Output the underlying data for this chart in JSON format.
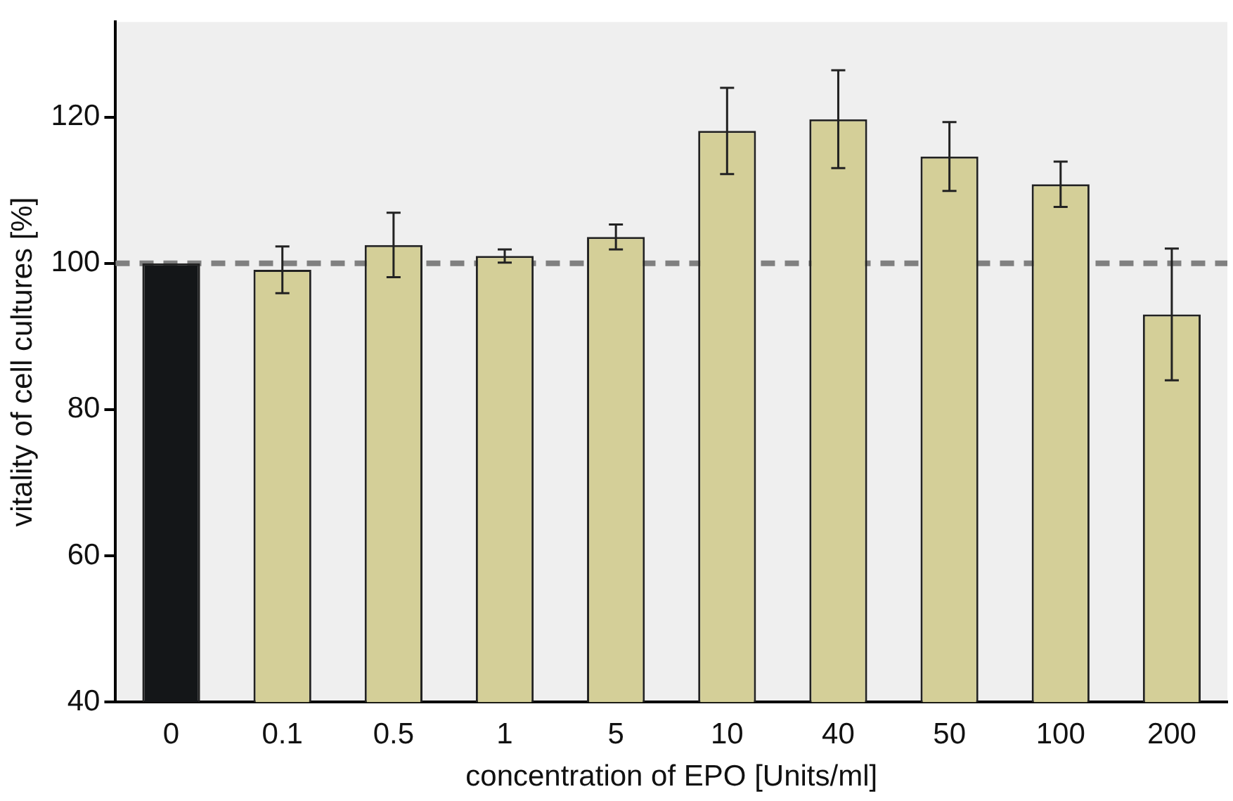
{
  "chart_data": {
    "type": "bar",
    "categories": [
      "0",
      "0.1",
      "0.5",
      "1",
      "5",
      "10",
      "40",
      "50",
      "100",
      "200"
    ],
    "values": [
      100,
      99.1,
      102.5,
      101.0,
      103.6,
      118.1,
      119.7,
      114.6,
      110.8,
      93.0
    ],
    "errors": [
      null,
      3.2,
      4.4,
      0.9,
      1.7,
      5.9,
      6.7,
      4.7,
      3.1,
      9.0
    ],
    "colors": [
      "#141618",
      "#d4cf98",
      "#d4cf98",
      "#d4cf98",
      "#d4cf98",
      "#d4cf98",
      "#d4cf98",
      "#d4cf98",
      "#d4cf98",
      "#d4cf98"
    ],
    "xlabel": "concentration of EPO [Units/ml]",
    "ylabel": "vitality of cell cultures [%]",
    "ylim": [
      40,
      133
    ],
    "yticks": [
      40,
      60,
      80,
      100,
      120
    ],
    "ref_lines": [
      {
        "axis": "y",
        "value": 100,
        "color": "#808080",
        "line_style": "dashed"
      }
    ],
    "grid": false,
    "legend": false
  }
}
